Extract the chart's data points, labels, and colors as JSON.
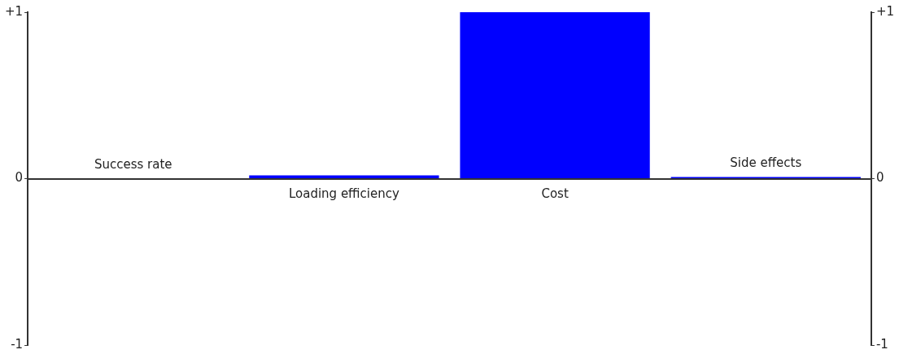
{
  "chart_data": {
    "type": "bar",
    "categories": [
      "Success rate",
      "Loading efficiency",
      "Cost",
      "Side effects"
    ],
    "values": [
      0,
      0.02,
      1,
      0.01
    ],
    "color": "#0000ff",
    "ylim": [
      -1,
      1
    ],
    "yticks": [
      {
        "value": -1,
        "label": "-1"
      },
      0,
      {
        "value": 1,
        "label": "+1"
      }
    ],
    "y2lim": [
      -1,
      1
    ],
    "y2ticks": [
      {
        "value": -1,
        "label": "-1"
      },
      0,
      {
        "value": 1,
        "label": "+1"
      }
    ],
    "grid": false,
    "legend": false
  }
}
